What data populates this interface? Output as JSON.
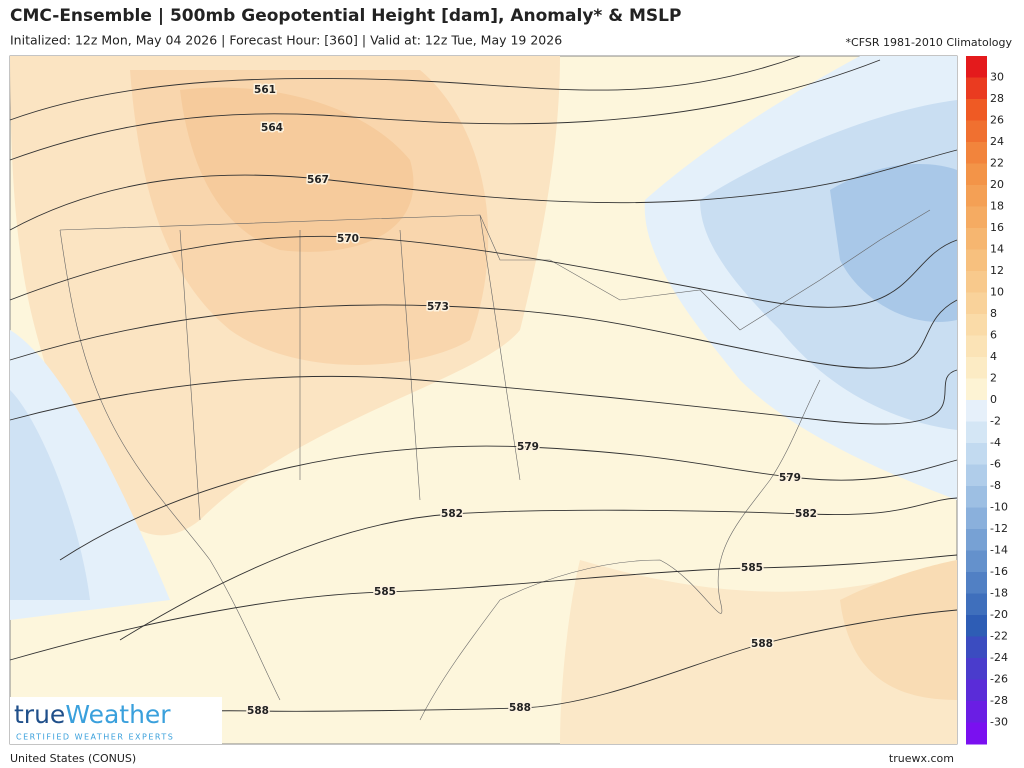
{
  "header": {
    "title": "CMC-Ensemble | 500mb Geopotential Height [dam], Anomaly* & MSLP",
    "subtitle": "Initalized: 12z Mon, May 04 2026 | Forecast Hour: [360] | Valid at: 12z Tue, May 19 2026",
    "note": "*CFSR 1981-2010 Climatology"
  },
  "map": {
    "contour_labels": [
      "561",
      "564",
      "567",
      "570",
      "573",
      "579",
      "579",
      "582",
      "582",
      "585",
      "585",
      "588",
      "588",
      "588"
    ]
  },
  "colorbar": {
    "labels": [
      30,
      28,
      26,
      24,
      22,
      20,
      18,
      16,
      14,
      12,
      10,
      8,
      6,
      4,
      2,
      0,
      -2,
      -4,
      -6,
      -8,
      -10,
      -12,
      -14,
      -16,
      -18,
      -20,
      -22,
      -24,
      -26,
      -28,
      -30
    ],
    "colors": [
      "#e41a1c",
      "#ea3b20",
      "#ef5a24",
      "#f07030",
      "#f2843c",
      "#f39448",
      "#f4a055",
      "#f5ab62",
      "#f6b670",
      "#f7c07e",
      "#f8c98c",
      "#f9d29a",
      "#fadba8",
      "#fbe3b6",
      "#fcebc4",
      "#fdf3d4",
      "#e6f0fa",
      "#d4e6f5",
      "#c2daf0",
      "#b0cdea",
      "#9dbfe3",
      "#8ab0dc",
      "#77a1d4",
      "#6491cc",
      "#5180c4",
      "#3f6fbc",
      "#2e5db5",
      "#3b4cc0",
      "#4a3ccc",
      "#5a2cd8",
      "#6a1ee4",
      "#7a10f0"
    ]
  },
  "logo": {
    "parts": [
      "true",
      "Weather"
    ],
    "tagline": "CERTIFIED WEATHER EXPERTS"
  },
  "footer": {
    "region": "United States (CONUS)",
    "site": "truewx.com"
  }
}
